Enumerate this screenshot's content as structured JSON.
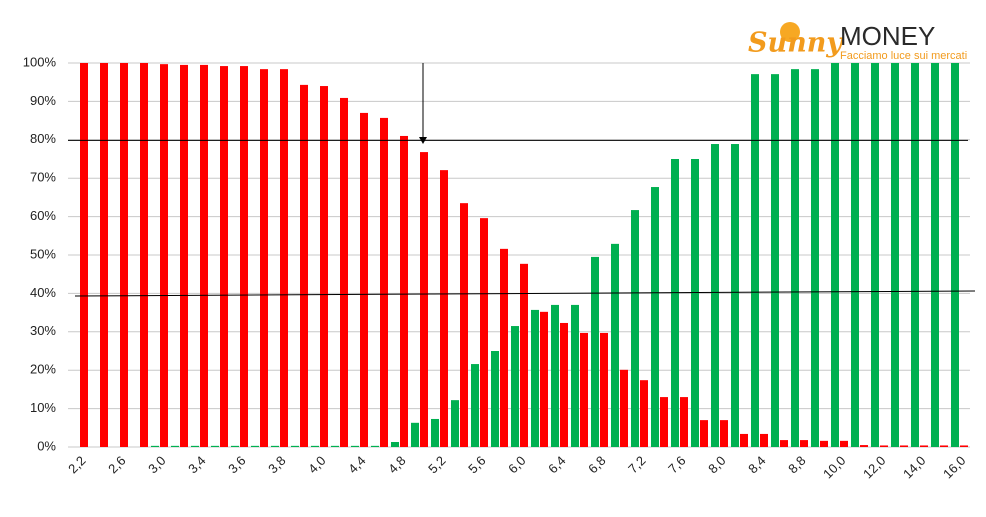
{
  "logo": {
    "brand": "Sunny",
    "name": "MONEY",
    "tagline": "Facciamo luce sui mercati"
  },
  "chart_data": {
    "type": "bar",
    "categories": [
      "2,2",
      null,
      "2,6",
      null,
      "3,0",
      null,
      "3,4",
      null,
      "3,6",
      null,
      "3,8",
      null,
      "4,0",
      null,
      "4,4",
      null,
      "4,8",
      null,
      "5,2",
      null,
      "5,6",
      null,
      "6,0",
      null,
      "6,4",
      null,
      "6,8",
      null,
      "7,2",
      null,
      "7,6",
      null,
      "8,0",
      null,
      "8,4",
      null,
      "8,8",
      null,
      "10,0",
      null,
      "12,0",
      null,
      "14,0",
      null,
      "16,0"
    ],
    "series": [
      {
        "color": "#00b050",
        "values": [
          0,
          0,
          0,
          0,
          0.3,
          0.3,
          0.3,
          0.3,
          0.3,
          0.3,
          0.3,
          0.3,
          0.3,
          0.3,
          0.3,
          0.3,
          1.3,
          6.3,
          7.3,
          12.2,
          21.6,
          25.0,
          31.5,
          35.7,
          37.0,
          37.0,
          49.5,
          52.9,
          61.7,
          67.7,
          75.0,
          75.0,
          78.9,
          78.9,
          97.1,
          97.1,
          98.4,
          98.4,
          100,
          100,
          100,
          100,
          100,
          100,
          100
        ]
      },
      {
        "color": "#ff0000",
        "values": [
          100,
          100,
          100,
          100,
          99.7,
          99.5,
          99.5,
          99.2,
          99.2,
          98.4,
          98.4,
          94.3,
          94.0,
          90.9,
          87.0,
          85.7,
          81.0,
          76.8,
          72.1,
          63.5,
          59.6,
          51.6,
          47.7,
          35.2,
          32.3,
          29.7,
          29.7,
          20.1,
          17.4,
          13.0,
          13.0,
          7.0,
          7.0,
          3.4,
          3.4,
          1.8,
          1.8,
          1.6,
          1.6,
          0.5,
          0.4,
          0.4,
          0.4,
          0.4,
          0.4
        ]
      }
    ],
    "ylim": [
      0,
      100
    ],
    "yticks": [
      {
        "value": 0,
        "label": "0%"
      },
      {
        "value": 10,
        "label": "10%"
      },
      {
        "value": 20,
        "label": "20%"
      },
      {
        "value": 30,
        "label": "30%"
      },
      {
        "value": 40,
        "label": "40%"
      },
      {
        "value": 50,
        "label": "50%"
      },
      {
        "value": 60,
        "label": "60%"
      },
      {
        "value": 70,
        "label": "70%"
      },
      {
        "value": 80,
        "label": "80%"
      },
      {
        "value": 90,
        "label": "90%"
      },
      {
        "value": 100,
        "label": "100%"
      }
    ],
    "grid": true
  }
}
